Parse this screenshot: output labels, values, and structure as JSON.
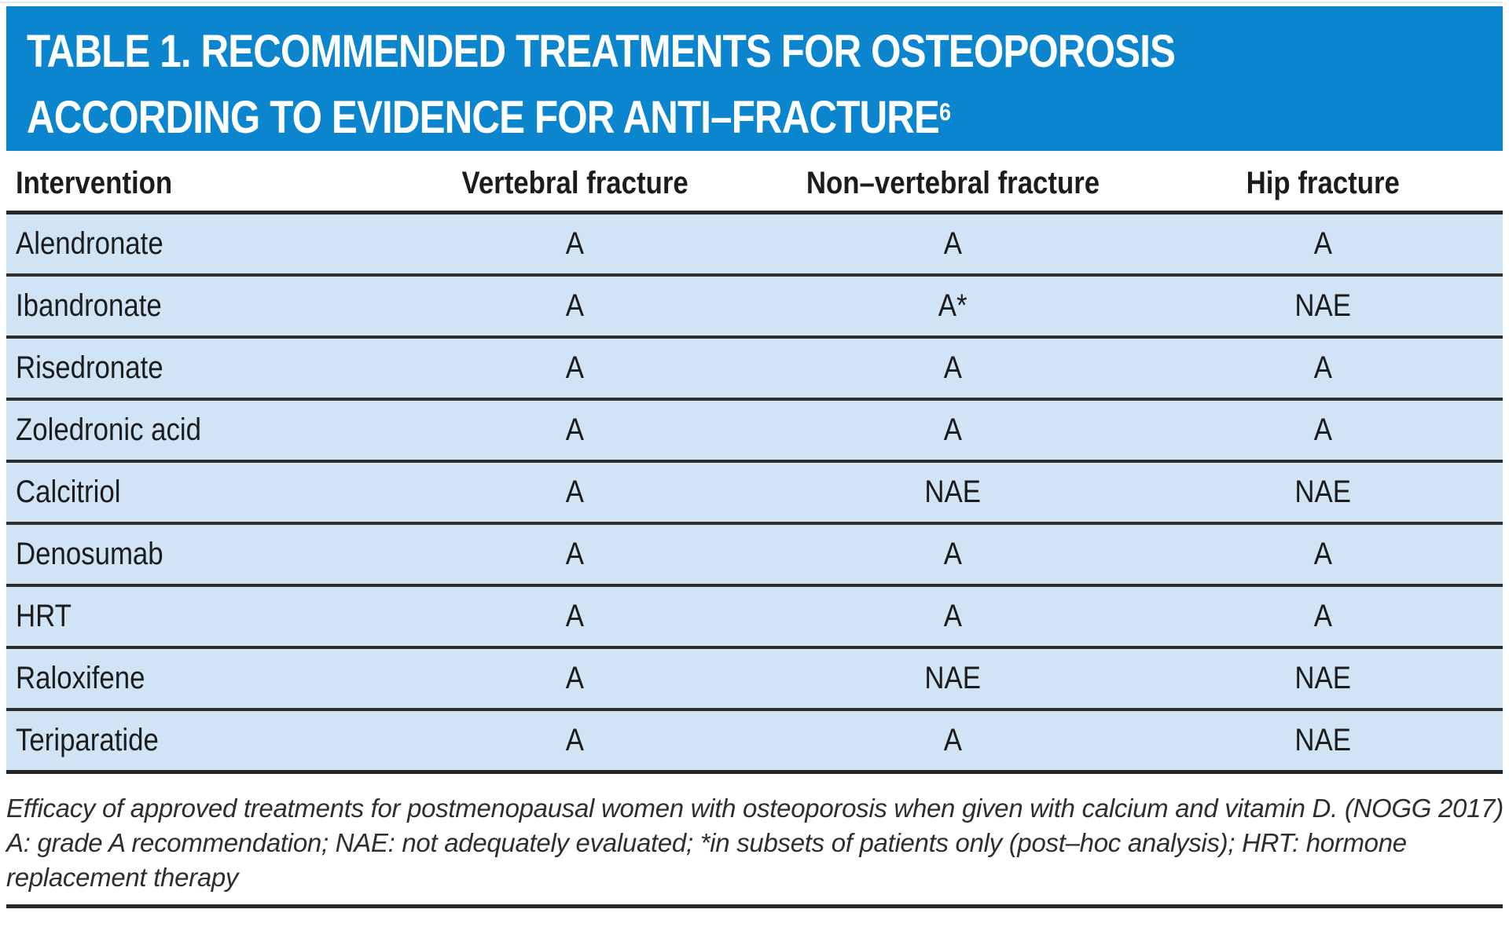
{
  "title": {
    "line1": "TABLE 1. RECOMMENDED TREATMENTS FOR OSTEOPOROSIS",
    "line2": "ACCORDING TO EVIDENCE FOR ANTI–FRACTURE",
    "reference_superscript": "6"
  },
  "colors": {
    "title_band_blue": "#0b86ce",
    "title_text": "#ffffff",
    "row_light_blue": "#d0e4f6",
    "rule_dark": "#262626",
    "text_dark": "#1c1c1c"
  },
  "table": {
    "columns": [
      "Intervention",
      "Vertebral fracture",
      "Non–vertebral fracture",
      "Hip fracture"
    ],
    "rows": [
      [
        "Alendronate",
        "A",
        "A",
        "A"
      ],
      [
        "Ibandronate",
        "A",
        "A*",
        "NAE"
      ],
      [
        "Risedronate",
        "A",
        "A",
        "A"
      ],
      [
        "Zoledronic acid",
        "A",
        "A",
        "A"
      ],
      [
        "Calcitriol",
        "A",
        "NAE",
        "NAE"
      ],
      [
        "Denosumab",
        "A",
        "A",
        "A"
      ],
      [
        "HRT",
        "A",
        "A",
        "A"
      ],
      [
        "Raloxifene",
        "A",
        "NAE",
        "NAE"
      ],
      [
        "Teriparatide",
        "A",
        "A",
        "NAE"
      ]
    ]
  },
  "footnote": {
    "line1": "Efficacy of approved treatments for postmenopausal women with osteoporosis when given with calcium and vitamin D. (NOGG 2017)",
    "line2": "A: grade A recommendation; NAE: not adequately evaluated; *in subsets of patients only (post–hoc analysis); HRT: hormone",
    "line3": "replacement therapy"
  }
}
